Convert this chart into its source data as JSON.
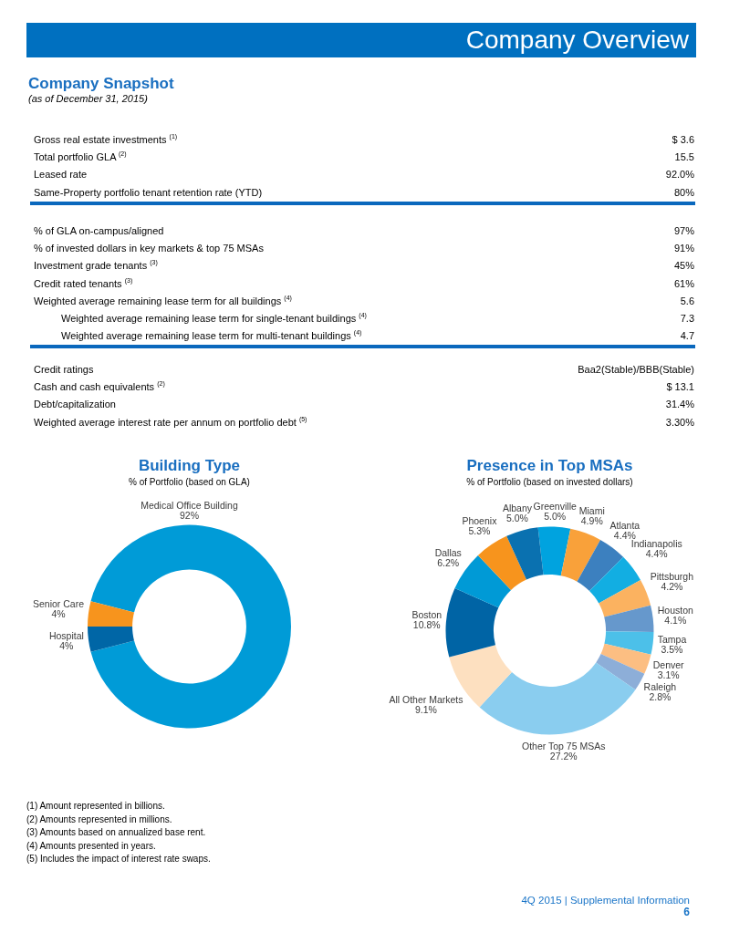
{
  "chart_data": [
    {
      "type": "other",
      "title": "Company Overview"
    },
    {
      "type": "other",
      "title": "Company Snapshot",
      "subtitle": "(as of December 31, 2015)",
      "categories": [
        "Gross real estate investments $^{(1)}$",
        "Total portfolio GLA $^{(2)}$",
        "Leased rate",
        "Same-Property portfolio tenant retention rate (YTD)"
      ],
      "value_labels": [
        "$ 3.6",
        "15.5",
        "92.0%",
        "80%"
      ]
    },
    {
      "type": "other",
      "categories": [
        "% of GLA on-campus/aligned",
        "% of invested dollars in key markets & top 75 MSAs",
        "Investment grade tenants $^{(3)}$",
        "Credit rated tenants $^{(3)}$",
        "Weighted average remaining lease term for all buildings $^{(4)}$",
        "Weighted average remaining lease term for single-tenant buildings $^{(4)}$",
        "Weighted average remaining lease term for multi-tenant buildings $^{(4)}$"
      ],
      "value_labels": [
        "97%",
        "91%",
        "45%",
        "61%",
        "5.6",
        "7.3",
        "4.7"
      ]
    },
    {
      "type": "other",
      "categories": [
        "Credit ratings",
        "Cash and cash equivalents $^{(2)}$",
        "Debt/capitalization",
        "Weighted average interest rate per annum on portfolio debt $^{(5)}$"
      ],
      "value_labels": [
        "Baa2(Stable)/BBB(Stable)",
        "$ 13.1",
        "31.4%",
        "3.30%"
      ]
    },
    {
      "type": "donut",
      "title": "Building Type",
      "subtitle": "% of Portfolio (based on GLA)",
      "categories": [
        "Medical Office Building",
        "Hospital",
        "Senior Care"
      ],
      "values": [
        92,
        4,
        4
      ],
      "colors": [
        "#009bd7",
        "#0066a6",
        "#f7941d"
      ],
      "value_labels": [
        "92%",
        "4%",
        "4%"
      ]
    },
    {
      "type": "donut",
      "title": "Presence in Top MSAs",
      "subtitle": "% of Portfolio (based on invested dollars)",
      "categories": [
        "Greenville",
        "Miami",
        "Atlanta",
        "Indianapolis",
        "Pittsburgh",
        "Houston",
        "Tampa",
        "Denver",
        "Raleigh",
        "Other Top 75 MSAs",
        "All Other Markets",
        "Boston",
        "Dallas",
        "Phoenix",
        "Albany"
      ],
      "values": [
        5.0,
        4.9,
        4.4,
        4.4,
        4.2,
        4.1,
        3.5,
        3.1,
        2.8,
        27.2,
        9.1,
        10.8,
        6.2,
        5.3,
        5.0
      ],
      "colors": [
        "#00a3df",
        "#f9a13a",
        "#3c80bf",
        "#12aee2",
        "#fbb260",
        "#6698cc",
        "#4cc0e9",
        "#fcbe82",
        "#8daed8",
        "#8acdef",
        "#fde0c0",
        "#0064a5",
        "#009ad6",
        "#f7941d",
        "#0a71b0"
      ],
      "value_labels": [
        "5.0%",
        "4.9%",
        "4.4%",
        "4.4%",
        "4.2%",
        "4.1%",
        "3.5%",
        "3.1%",
        "2.8%",
        "27.2%",
        "9.1%",
        "10.8%",
        "6.2%",
        "5.3%",
        "5.0%"
      ]
    },
    {
      "type": "other",
      "annotations": [
        "(1) Amount represented in billions.",
        "(2) Amounts represented in millions.",
        "(3) Amounts based on annualized base rent.",
        "(4) Amounts presented in years.",
        "(5) Includes the impact of interest rate swaps."
      ]
    },
    {
      "type": "other",
      "annotations": [
        "4Q 2015 | Supplemental Information",
        "6"
      ]
    }
  ]
}
